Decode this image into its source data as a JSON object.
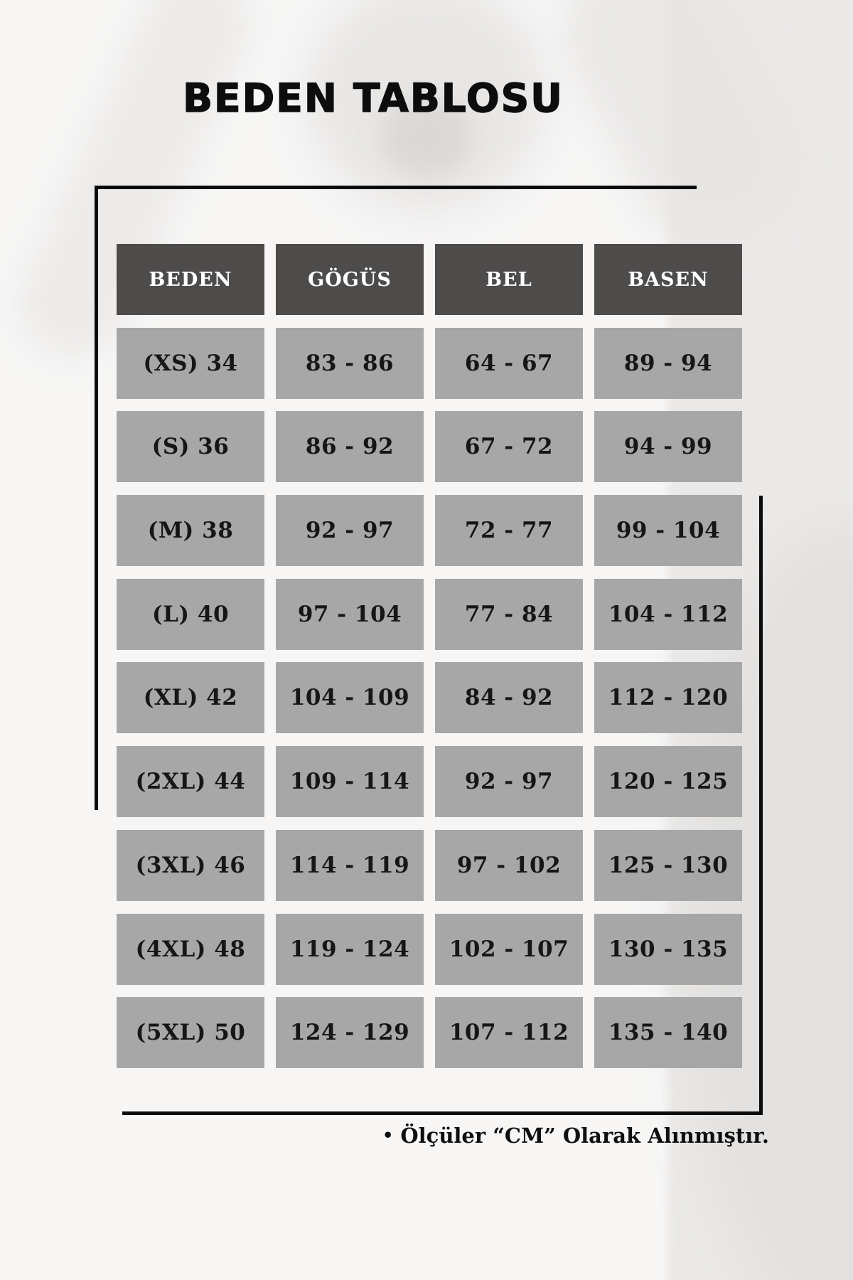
{
  "page": {
    "title": "BEDEN TABLOSU",
    "note_bullet": "•",
    "note_text": "Ölçüler “CM” Olarak Alınmıştır."
  },
  "colors": {
    "background": "#f7f6f5",
    "header_cell_bg": "#4e4b4b",
    "header_cell_text": "#ffffff",
    "data_cell_bg": "#a8a7a7",
    "data_cell_text": "#161616",
    "frame_line": "#0c0c0c"
  },
  "chart_data": {
    "type": "table",
    "title": "BEDEN TABLOSU",
    "headers": [
      "BEDEN",
      "GÖGÜS",
      "BEL",
      "BASEN"
    ],
    "rows": [
      [
        "(XS) 34",
        "83 - 86",
        "64 - 67",
        "89 - 94"
      ],
      [
        "(S) 36",
        "86 - 92",
        "67 - 72",
        "94 - 99"
      ],
      [
        "(M) 38",
        "92 - 97",
        "72 - 77",
        "99 - 104"
      ],
      [
        "(L) 40",
        "97 - 104",
        "77 - 84",
        "104 - 112"
      ],
      [
        "(XL) 42",
        "104 - 109",
        "84 - 92",
        "112 - 120"
      ],
      [
        "(2XL) 44",
        "109 - 114",
        "92 - 97",
        "120 - 125"
      ],
      [
        "(3XL) 46",
        "114 - 119",
        "97 - 102",
        "125 - 130"
      ],
      [
        "(4XL) 48",
        "119 - 124",
        "102 - 107",
        "130 - 135"
      ],
      [
        "(5XL) 50",
        "124 - 129",
        "107 - 112",
        "135 - 140"
      ]
    ],
    "units_note": "Ölçüler “CM” Olarak Alınmıştır.",
    "legend_position": "none",
    "grid": false
  }
}
